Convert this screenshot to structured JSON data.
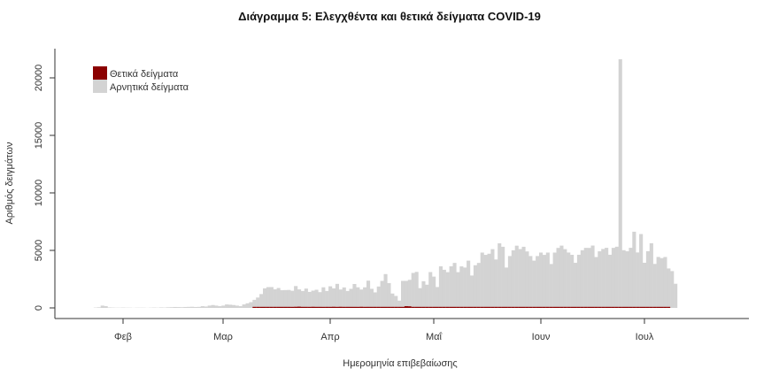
{
  "chart_data": {
    "type": "bar",
    "stacked": true,
    "title": "Διάγραμμα 5: Ελεγχθέντα και θετικά δείγματα COVID-19",
    "xlabel": "Ημερομηνία επιβεβαίωσης",
    "ylabel": "Αριθμός δειγμάτων",
    "ylim": [
      0,
      22000
    ],
    "yticks": [
      0,
      5000,
      10000,
      15000,
      20000
    ],
    "xticks": [
      "Φεβ",
      "Μαρ",
      "Απρ",
      "Μαΐ",
      "Ιουν",
      "Ιουλ"
    ],
    "grid": false,
    "legend_position": "top-left",
    "legend": [
      {
        "label": "Θετικά δείγματα",
        "color": "#8b0000"
      },
      {
        "label": "Αρνητικά δείγματα",
        "color": "#d3d3d3"
      }
    ],
    "start_date": "2020-01-20",
    "series": [
      {
        "name": "Θετικά δείγματα",
        "color": "#8b0000",
        "values": [
          0,
          0,
          0,
          0,
          0,
          0,
          0,
          0,
          0,
          0,
          0,
          0,
          0,
          0,
          0,
          0,
          0,
          0,
          0,
          0,
          0,
          0,
          0,
          0,
          0,
          0,
          0,
          0,
          0,
          0,
          0,
          0,
          0,
          0,
          0,
          0,
          0,
          0,
          0,
          0,
          0,
          0,
          0,
          0,
          0,
          0,
          0,
          0,
          0,
          0,
          0,
          0,
          0,
          0,
          0,
          0,
          0,
          1,
          2,
          3,
          5,
          8,
          10,
          15,
          30,
          40,
          50,
          60,
          90,
          100,
          110,
          70,
          80,
          90,
          100,
          80,
          70,
          90,
          70,
          80,
          100,
          90,
          100,
          80,
          70,
          60,
          80,
          90,
          100,
          90,
          70,
          60,
          50,
          60,
          50,
          40,
          60,
          50,
          40,
          30,
          50,
          150,
          140,
          40,
          30,
          20,
          20,
          20,
          15,
          20,
          15,
          15,
          15,
          10,
          15,
          10,
          10,
          10,
          10,
          10,
          15,
          10,
          10,
          10,
          10,
          10,
          10,
          10,
          15,
          15,
          10,
          10,
          10,
          10,
          15,
          15,
          10,
          10,
          10,
          10,
          10,
          10,
          10,
          15,
          10,
          15,
          15,
          10,
          15,
          15,
          20,
          20,
          15,
          20,
          15,
          20,
          20,
          20,
          25,
          25,
          20,
          20,
          20,
          20,
          20,
          25,
          25,
          25,
          20,
          20,
          25,
          30,
          25,
          25,
          30,
          30,
          25,
          30
        ]
      },
      {
        "name": "Αρνητικά δείγματα",
        "color": "#d3d3d3",
        "values": [
          0,
          0,
          0,
          0,
          0,
          0,
          0,
          0,
          0,
          0,
          0,
          30,
          50,
          200,
          150,
          40,
          30,
          20,
          20,
          30,
          20,
          20,
          10,
          20,
          20,
          20,
          10,
          20,
          30,
          20,
          40,
          30,
          50,
          60,
          80,
          70,
          60,
          80,
          90,
          100,
          80,
          90,
          150,
          120,
          200,
          250,
          200,
          150,
          200,
          300,
          280,
          250,
          200,
          150,
          300,
          400,
          500,
          700,
          900,
          1200,
          1700,
          1800,
          1800,
          1600,
          1700,
          1500,
          1500,
          1500,
          1400,
          1800,
          1500,
          1400,
          1600,
          1300,
          1400,
          1500,
          1300,
          1700,
          1400,
          1800,
          1600,
          2000,
          1500,
          1700,
          1400,
          1600,
          2000,
          1700,
          1500,
          1700,
          2300,
          1600,
          1300,
          1800,
          2300,
          2900,
          2100,
          1200,
          1000,
          600,
          2300,
          2200,
          2300,
          3000,
          3100,
          1700,
          2300,
          2000,
          3100,
          2700,
          1800,
          3600,
          3300,
          3100,
          3600,
          3900,
          3100,
          3600,
          3500,
          4100,
          2800,
          3700,
          3900,
          4800,
          4600,
          4700,
          5100,
          4200,
          5600,
          5300,
          3500,
          4500,
          5000,
          5400,
          5100,
          5300,
          4900,
          4500,
          4100,
          4500,
          4800,
          4600,
          4800,
          3800,
          4800,
          5200,
          5400,
          5100,
          4800,
          4600,
          3900,
          4600,
          5000,
          5200,
          5200,
          5400,
          4400,
          4900,
          5100,
          5200,
          4600,
          5200,
          5300,
          21600,
          5000,
          4900,
          5200,
          6600,
          4800,
          6400,
          3900,
          4900,
          5600,
          3800,
          4400,
          4300,
          4400,
          3400,
          3200,
          2100
        ]
      }
    ]
  }
}
